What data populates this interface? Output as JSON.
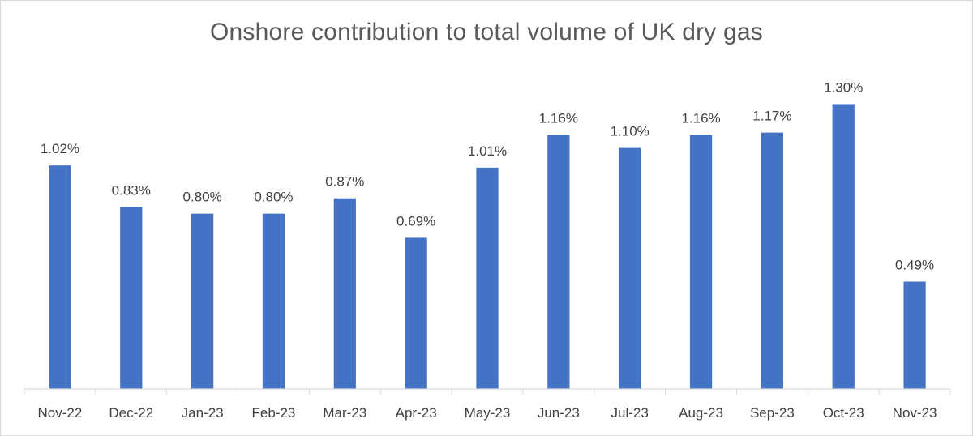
{
  "chart_data": {
    "type": "bar",
    "title": "Onshore contribution to total volume of UK dry gas",
    "xlabel": "",
    "ylabel": "",
    "ylim": [
      0,
      1.42
    ],
    "grid": false,
    "categories": [
      "Nov-22",
      "Dec-22",
      "Jan-23",
      "Feb-23",
      "Mar-23",
      "Apr-23",
      "May-23",
      "Jun-23",
      "Jul-23",
      "Aug-23",
      "Sep-23",
      "Oct-23",
      "Nov-23"
    ],
    "values": [
      1.02,
      0.83,
      0.8,
      0.8,
      0.87,
      0.69,
      1.01,
      1.16,
      1.1,
      1.16,
      1.17,
      1.3,
      0.49
    ],
    "data_labels": [
      "1.02%",
      "0.83%",
      "0.80%",
      "0.80%",
      "0.87%",
      "0.69%",
      "1.01%",
      "1.16%",
      "1.10%",
      "1.16%",
      "1.17%",
      "1.30%",
      "0.49%"
    ],
    "bar_color": "#4472c4"
  }
}
